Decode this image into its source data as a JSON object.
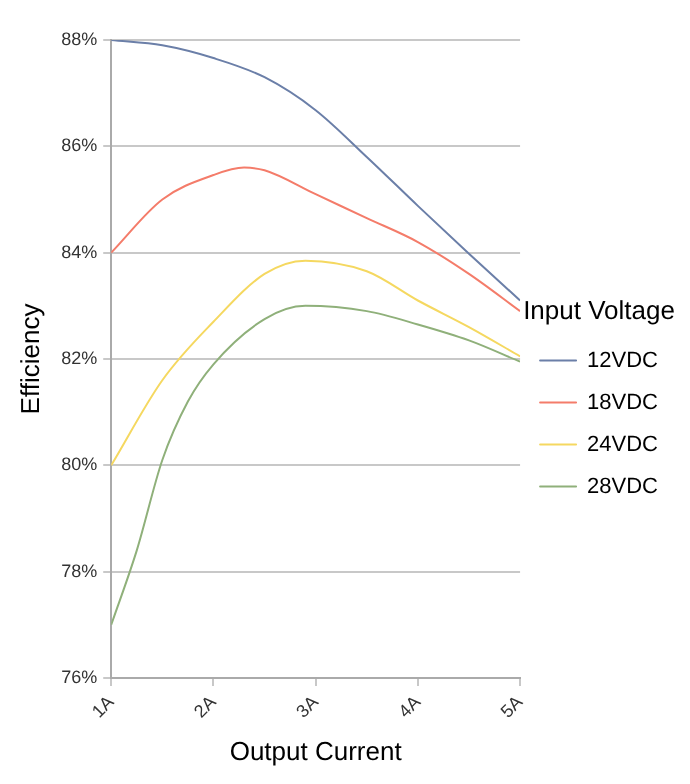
{
  "chart_data": {
    "type": "line",
    "xlabel": "Output Current",
    "ylabel": "Efficiency",
    "legend_title": "Input Voltage",
    "legend": "right",
    "grid": "y",
    "marker": "none",
    "line_style": "solid",
    "xlim": [
      1,
      5
    ],
    "xticks": [
      {
        "value": 1,
        "label": "1A"
      },
      {
        "value": 2,
        "label": "2A"
      },
      {
        "value": 3,
        "label": "3A"
      },
      {
        "value": 4,
        "label": "4A"
      },
      {
        "value": 5,
        "label": "5A"
      }
    ],
    "ylim": [
      76,
      88
    ],
    "yticks": [
      {
        "value": 76,
        "label": "76%"
      },
      {
        "value": 78,
        "label": "78%"
      },
      {
        "value": 80,
        "label": "80%"
      },
      {
        "value": 82,
        "label": "82%"
      },
      {
        "value": 84,
        "label": "84%"
      },
      {
        "value": 86,
        "label": "86%"
      },
      {
        "value": 88,
        "label": "88%"
      }
    ],
    "series": [
      {
        "name": "12VDC",
        "color": "#6b7fa8",
        "x": [
          1,
          1.5,
          2,
          2.5,
          3,
          3.5,
          4,
          4.5,
          5
        ],
        "values": [
          88,
          87.9,
          87.66,
          87.3,
          86.68,
          85.8,
          84.88,
          83.98,
          83.1
        ]
      },
      {
        "name": "18VDC",
        "color": "#f47c6a",
        "x": [
          1,
          1.5,
          2,
          2.3,
          2.5,
          3,
          3.5,
          4,
          4.5,
          5
        ],
        "values": [
          84,
          85,
          85.46,
          85.6,
          85.55,
          85.1,
          84.65,
          84.2,
          83.6,
          82.9
        ]
      },
      {
        "name": "24VDC",
        "color": "#f5d860",
        "x": [
          1,
          1.5,
          2,
          2.5,
          2.9,
          3.5,
          4,
          4.5,
          5
        ],
        "values": [
          80,
          81.6,
          82.7,
          83.6,
          83.85,
          83.65,
          83.1,
          82.6,
          82.05
        ]
      },
      {
        "name": "28VDC",
        "color": "#8fb07a",
        "x": [
          1,
          1.25,
          1.5,
          1.75,
          2,
          2.5,
          2.9,
          3.5,
          4,
          4.5,
          5
        ],
        "values": [
          77,
          78.4,
          80.1,
          81.2,
          81.9,
          82.75,
          83,
          82.9,
          82.65,
          82.35,
          81.95
        ]
      }
    ]
  }
}
